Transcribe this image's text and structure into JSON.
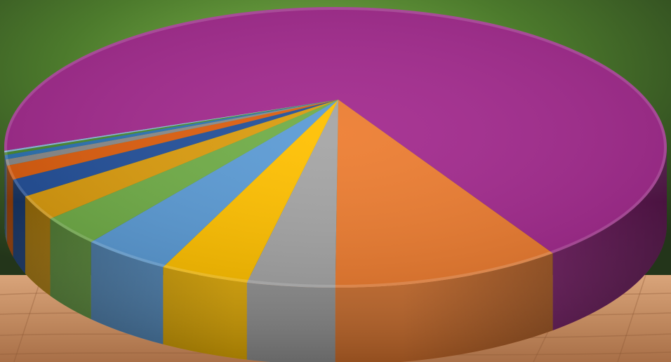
{
  "chart_data": {
    "type": "pie",
    "style": "3d",
    "title": "",
    "legend": "none",
    "data_labels": "none",
    "slices": [
      {
        "value": 11.4,
        "color": "#ED7D31"
      },
      {
        "value": 4.3,
        "color": "#A5A5A5"
      },
      {
        "value": 4.4,
        "color": "#FFC000"
      },
      {
        "value": 4.5,
        "color": "#5B9BD5"
      },
      {
        "value": 3.3,
        "color": "#70AD47"
      },
      {
        "value": 2.8,
        "color": "#DB9C0E"
      },
      {
        "value": 2.0,
        "color": "#23509A"
      },
      {
        "value": 1.6,
        "color": "#DE5E0E"
      },
      {
        "value": 0.7,
        "color": "#8B8B8B"
      },
      {
        "value": 0.5,
        "color": "#2C73B4"
      },
      {
        "value": 0.3,
        "color": "#4A8C30"
      },
      {
        "value": 0.2,
        "color": "#8FBCE6"
      },
      {
        "value": 64.0,
        "color": "#A32A8E"
      }
    ]
  },
  "background": {
    "foliage_color": "#4c7a2c",
    "table_color": "#c6926a"
  }
}
